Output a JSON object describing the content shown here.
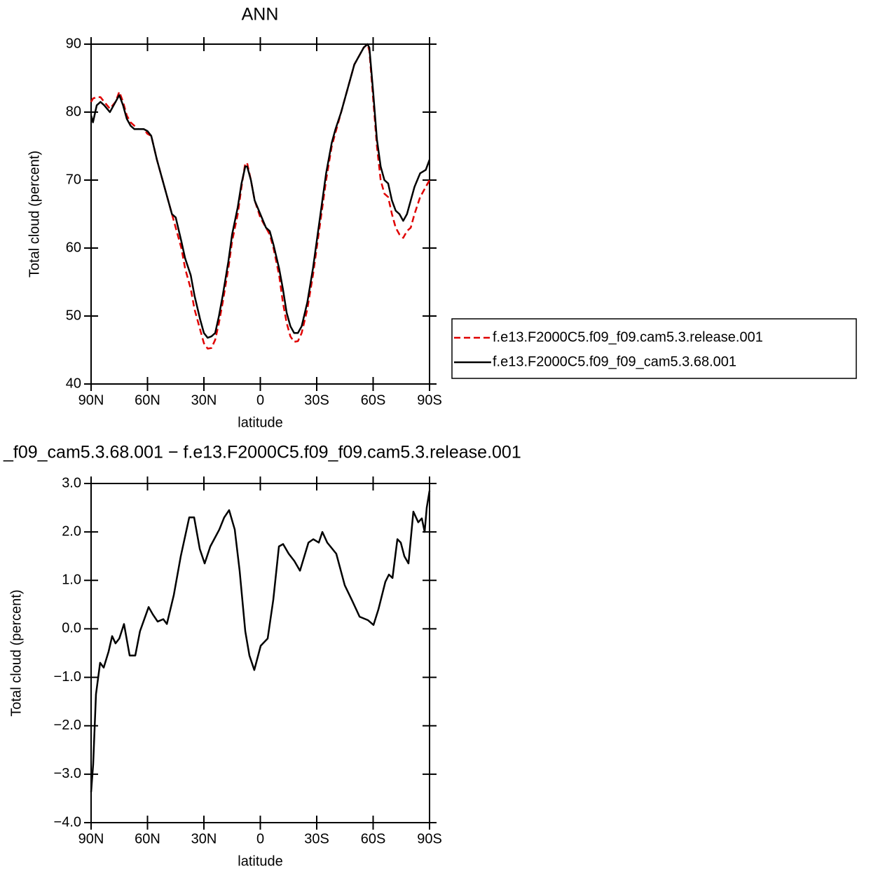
{
  "chart_data": [
    {
      "type": "line",
      "title": "ANN",
      "xlabel": "latitude",
      "ylabel": "Total cloud (percent)",
      "x": [
        90,
        89,
        87,
        85,
        83,
        80,
        77,
        75,
        73,
        71,
        69,
        67,
        65,
        62,
        60,
        58,
        55,
        52,
        50,
        47,
        45,
        42,
        40,
        37,
        35,
        32,
        30,
        28,
        26,
        24,
        22,
        20,
        17,
        15,
        12,
        10,
        8,
        7,
        5,
        3,
        0,
        -3,
        -5,
        -7,
        -10,
        -12,
        -14,
        -16,
        -18,
        -20,
        -22,
        -25,
        -28,
        -30,
        -33,
        -35,
        -38,
        -40,
        -43,
        -45,
        -48,
        -50,
        -53,
        -55,
        -57,
        -58,
        -60,
        -62,
        -64,
        -66,
        -68,
        -70,
        -72,
        -74,
        -76,
        -78,
        -80,
        -82,
        -85,
        -88,
        -90
      ],
      "series": [
        {
          "name": "f.e13.F2000C5.f09_f09.cam5.3.release.001",
          "color": "#e00000",
          "line_style": "dashed",
          "values": [
            81.5,
            82,
            82.2,
            82.2,
            81.5,
            80.5,
            81.5,
            83,
            81.5,
            79.5,
            78.5,
            78,
            77.5,
            77.5,
            76.8,
            76.5,
            73,
            70,
            68,
            65,
            63,
            60,
            57,
            54,
            51,
            48,
            46,
            45.2,
            45.3,
            46.5,
            49,
            52,
            57,
            61,
            65,
            69,
            72.5,
            72.5,
            70,
            67,
            64.5,
            63,
            62,
            60,
            56,
            52,
            49,
            47,
            46.2,
            46.3,
            47.5,
            51,
            56,
            60,
            66,
            70,
            75,
            77,
            80,
            82,
            85,
            87,
            88.5,
            89.5,
            90,
            89,
            82,
            75,
            70,
            68,
            67.5,
            65,
            63,
            62,
            61.5,
            62.5,
            63,
            65,
            67.5,
            69,
            70
          ]
        },
        {
          "name": "f.e13.F2000C5.f09_f09_cam5.3.68.001",
          "color": "#000000",
          "line_style": "solid",
          "values": [
            79.5,
            78.5,
            81,
            81.5,
            81,
            80,
            81.5,
            82.5,
            81,
            79,
            78,
            77.5,
            77.5,
            77.5,
            77.2,
            76.5,
            73,
            70,
            68,
            65,
            64.5,
            61,
            58.5,
            56,
            53,
            49.5,
            47.5,
            46.8,
            47,
            47.5,
            50,
            53,
            58,
            62,
            66,
            69.5,
            72,
            72,
            70,
            67,
            65,
            63,
            62.5,
            60.5,
            57,
            54,
            50.5,
            48.5,
            47.5,
            47.5,
            48.5,
            52,
            57,
            61,
            67,
            71,
            75.5,
            77.5,
            80,
            82,
            85,
            87,
            88.5,
            89.5,
            90,
            89.5,
            83,
            76,
            72,
            70,
            69.5,
            67,
            65.5,
            65,
            64,
            65,
            67,
            69,
            71,
            71.5,
            73
          ]
        }
      ],
      "xlim": [
        90,
        -90
      ],
      "xticks": [
        {
          "value": 90,
          "label": "90N"
        },
        {
          "value": 60,
          "label": "60N"
        },
        {
          "value": 30,
          "label": "30N"
        },
        0,
        {
          "value": -30,
          "label": "30S"
        },
        {
          "value": -60,
          "label": "60S"
        },
        {
          "value": -90,
          "label": "90S"
        }
      ],
      "ylim": [
        40,
        90
      ],
      "yticks": [
        40,
        50,
        60,
        70,
        80,
        90
      ],
      "legend": "right"
    },
    {
      "type": "line",
      "title": "_f09_cam5.3.68.001 − f.e13.F2000C5.f09_f09.cam5.3.release.001",
      "xlabel": "latitude",
      "ylabel": "Total cloud (percent)",
      "x": [
        90,
        88.9,
        87.4,
        85.2,
        83.3,
        80.7,
        78.8,
        77,
        75,
        72.5,
        69.5,
        66.5,
        64,
        59.4,
        57.2,
        54.6,
        51.6,
        49.7,
        46,
        42.3,
        37.8,
        35.2,
        32.2,
        29.6,
        26.6,
        21.8,
        19.2,
        16.6,
        13.6,
        11,
        8,
        5.8,
        3.2,
        -0.2,
        -3.9,
        -6.9,
        -9.9,
        -12.1,
        -15.1,
        -18.1,
        -21.1,
        -25.6,
        -28.2,
        -31.1,
        -33,
        -35.6,
        -40.4,
        -44.9,
        -49,
        -52.8,
        -57.2,
        -60.2,
        -62.8,
        -66.5,
        -68.4,
        -70.3,
        -72.9,
        -74.7,
        -76.6,
        -78.8,
        -81.4,
        -84,
        -85.9,
        -87.4,
        -88.5,
        -90
      ],
      "series": [
        {
          "color": "#000000",
          "line_style": "solid",
          "values": [
            -3.37,
            -2.8,
            -1.35,
            -0.7,
            -0.8,
            -0.47,
            -0.15,
            -0.3,
            -0.2,
            0.1,
            -0.55,
            -0.55,
            -0.05,
            0.45,
            0.3,
            0.15,
            0.2,
            0.1,
            0.7,
            1.5,
            2.3,
            2.3,
            1.65,
            1.35,
            1.7,
            2.05,
            2.3,
            2.45,
            2.05,
            1.2,
            -0.05,
            -0.55,
            -0.85,
            -0.35,
            -0.2,
            0.6,
            1.7,
            1.75,
            1.55,
            1.4,
            1.2,
            1.78,
            1.85,
            1.78,
            2.0,
            1.78,
            1.55,
            0.9,
            0.57,
            0.25,
            0.18,
            0.08,
            0.4,
            0.97,
            1.12,
            1.05,
            1.85,
            1.78,
            1.5,
            1.35,
            2.42,
            2.2,
            2.28,
            2.0,
            2.5,
            2.85
          ]
        }
      ],
      "xlim": [
        90,
        -90
      ],
      "xticks": [
        {
          "value": 90,
          "label": "90N"
        },
        {
          "value": 60,
          "label": "60N"
        },
        {
          "value": 30,
          "label": "30N"
        },
        0,
        {
          "value": -30,
          "label": "30S"
        },
        {
          "value": -60,
          "label": "60S"
        },
        {
          "value": -90,
          "label": "90S"
        }
      ],
      "ylim": [
        -4,
        3
      ],
      "yticks": [
        {
          "value": -4,
          "label": "−4.0"
        },
        {
          "value": -3,
          "label": "−3.0"
        },
        {
          "value": -2,
          "label": "−2.0"
        },
        {
          "value": -1,
          "label": "−1.0"
        },
        {
          "value": 0,
          "label": "0.0"
        },
        {
          "value": 1,
          "label": "1.0"
        },
        {
          "value": 2,
          "label": "2.0"
        },
        {
          "value": 3,
          "label": "3.0"
        }
      ]
    }
  ]
}
